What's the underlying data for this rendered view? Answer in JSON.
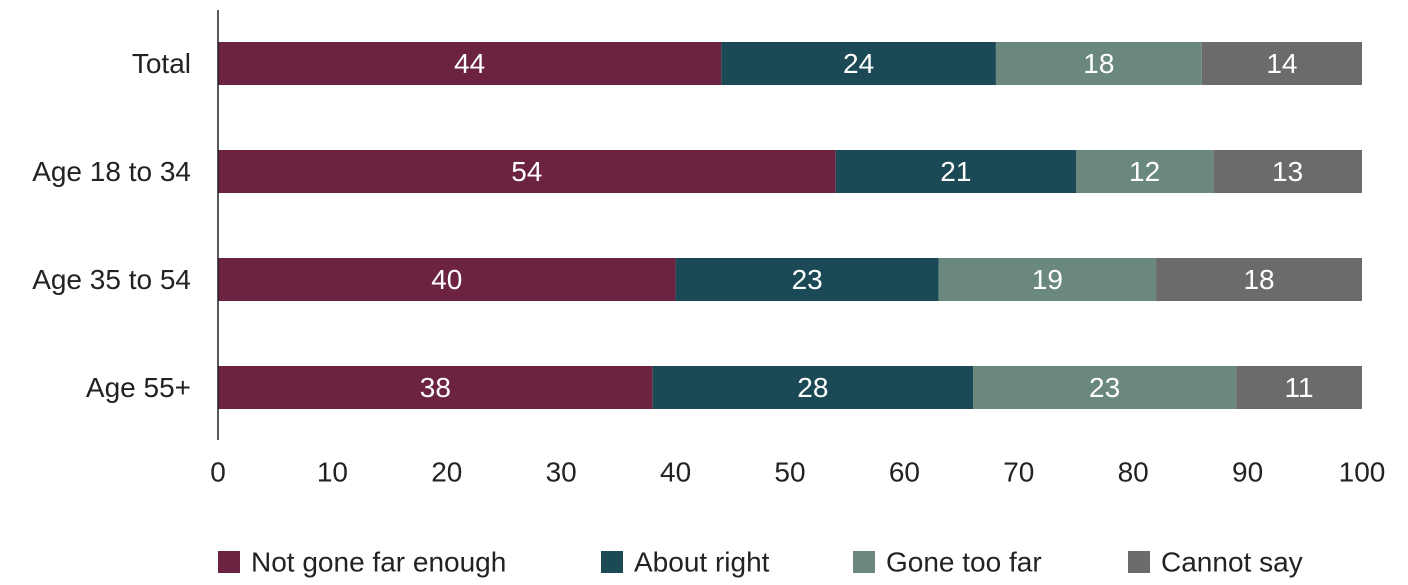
{
  "chart_data": {
    "type": "bar",
    "orientation": "horizontal",
    "stacked": true,
    "categories": [
      "Total",
      "Age 18 to 34",
      "Age 35 to 54",
      "Age 55+"
    ],
    "series": [
      {
        "name": "Not gone far enough",
        "color": "#6b2341",
        "values": [
          44,
          54,
          40,
          38
        ]
      },
      {
        "name": "About right",
        "color": "#1b4a56",
        "values": [
          24,
          21,
          23,
          28
        ]
      },
      {
        "name": "Gone too far",
        "color": "#6a887d",
        "values": [
          18,
          12,
          19,
          23
        ]
      },
      {
        "name": "Cannot say",
        "color": "#6b6b6b",
        "values": [
          14,
          13,
          18,
          11
        ]
      }
    ],
    "xlim": [
      0,
      100
    ],
    "xticks": [
      0,
      10,
      20,
      30,
      40,
      50,
      60,
      70,
      80,
      90,
      100
    ],
    "grid": false,
    "legend_position": "bottom"
  }
}
